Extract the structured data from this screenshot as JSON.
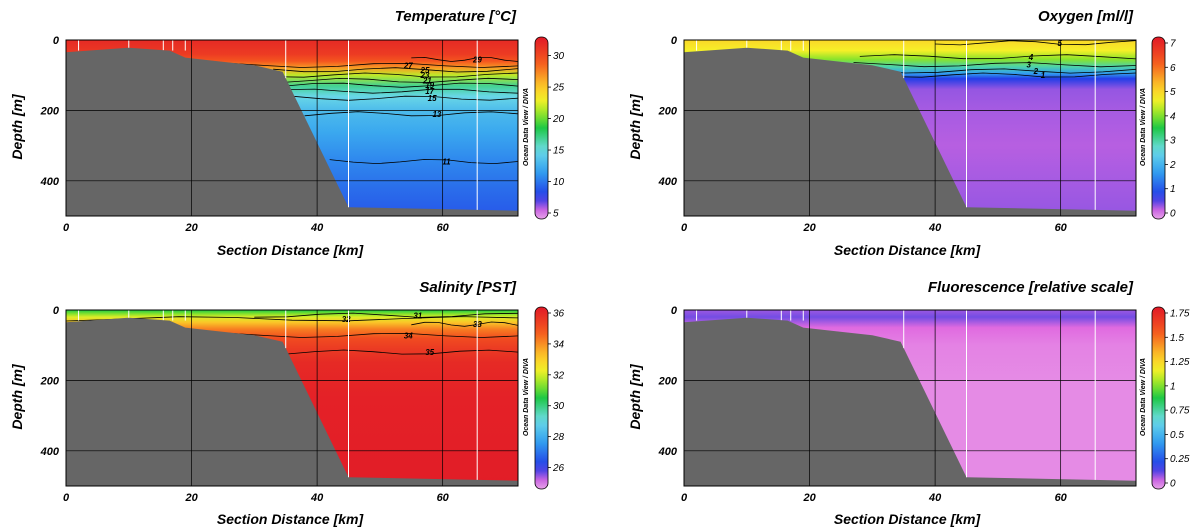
{
  "credit": "Ocean Data View / DIVA",
  "chart_data": [
    {
      "type": "heatmap",
      "title": "Temperature [°C]",
      "xlabel": "Section Distance [km]",
      "ylabel": "Depth [m]",
      "xlim": [
        0,
        72
      ],
      "ylim": [
        0,
        500
      ],
      "y_inverted": true,
      "xticks": [
        0,
        20,
        40,
        60
      ],
      "yticks": [
        0,
        200,
        400
      ],
      "colorbar": {
        "min": 5,
        "max": 32,
        "ticks": [
          5,
          10,
          15,
          20,
          25,
          30
        ],
        "colormap": "odv-rainbow"
      },
      "stations_km": [
        2,
        10,
        15.5,
        17,
        19,
        35,
        45,
        65.5
      ],
      "bathymetry": {
        "x": [
          0,
          10,
          16.5,
          19,
          24,
          30,
          34.5,
          45,
          72
        ],
        "depth": [
          35,
          22,
          30,
          50,
          60,
          72,
          90,
          475,
          485
        ]
      },
      "field": {
        "depths": [
          0,
          40,
          60,
          80,
          100,
          130,
          160,
          200,
          260,
          340,
          420,
          500
        ],
        "values": [
          31,
          30,
          28.5,
          26,
          21.5,
          17,
          15,
          13.5,
          12.5,
          11.2,
          10.2,
          9.4
        ]
      },
      "contours": [
        {
          "label": "29",
          "depth": 55,
          "x_range": [
            55,
            72
          ]
        },
        {
          "label": "27",
          "depth": 72,
          "x_range": [
            26,
            72
          ]
        },
        {
          "label": "25",
          "depth": 85,
          "x_range": [
            33,
            72
          ]
        },
        {
          "label": "23",
          "depth": 100,
          "x_range": [
            33,
            72
          ]
        },
        {
          "label": "21",
          "depth": 115,
          "x_range": [
            34,
            72
          ]
        },
        {
          "label": "19",
          "depth": 128,
          "x_range": [
            35,
            72
          ]
        },
        {
          "label": "17",
          "depth": 145,
          "x_range": [
            35,
            72
          ]
        },
        {
          "label": "15",
          "depth": 165,
          "x_range": [
            36,
            72
          ]
        },
        {
          "label": "13",
          "depth": 210,
          "x_range": [
            38,
            72
          ]
        },
        {
          "label": "11",
          "depth": 345,
          "x_range": [
            42,
            72
          ]
        }
      ]
    },
    {
      "type": "heatmap",
      "title": "Oxygen [ml/l]",
      "xlabel": "Section Distance [km]",
      "ylabel": "Depth [m]",
      "xlim": [
        0,
        72
      ],
      "ylim": [
        0,
        500
      ],
      "y_inverted": true,
      "xticks": [
        0,
        20,
        40,
        60
      ],
      "yticks": [
        0,
        200,
        400
      ],
      "colorbar": {
        "min": 0,
        "max": 7,
        "ticks": [
          0,
          1,
          2,
          3,
          4,
          5,
          6,
          7
        ],
        "colormap": "odv-rainbow"
      },
      "stations_km": [
        2,
        10,
        15.5,
        17,
        19,
        35,
        45,
        65.5
      ],
      "bathymetry": {
        "x": [
          0,
          10,
          16.5,
          19,
          24,
          30,
          34.5,
          45,
          72
        ],
        "depth": [
          35,
          22,
          30,
          50,
          60,
          72,
          90,
          475,
          485
        ]
      },
      "field": {
        "depths": [
          0,
          30,
          55,
          75,
          95,
          110,
          140,
          200,
          300,
          400,
          500
        ],
        "values": [
          4.9,
          4.6,
          4.0,
          3.0,
          1.8,
          0.9,
          0.5,
          0.45,
          0.4,
          0.45,
          0.5
        ]
      },
      "contours": [
        {
          "label": "5",
          "depth": 8,
          "x_range": [
            40,
            72
          ]
        },
        {
          "label": "4",
          "depth": 48,
          "x_range": [
            28,
            72
          ]
        },
        {
          "label": "3",
          "depth": 70,
          "x_range": [
            27,
            72
          ]
        },
        {
          "label": "2",
          "depth": 88,
          "x_range": [
            30,
            72
          ]
        },
        {
          "label": "1",
          "depth": 100,
          "x_range": [
            33,
            72
          ]
        }
      ]
    },
    {
      "type": "heatmap",
      "title": "Salinity [PST]",
      "xlabel": "Section Distance [km]",
      "ylabel": "Depth [m]",
      "xlim": [
        0,
        72
      ],
      "ylim": [
        0,
        500
      ],
      "y_inverted": true,
      "xticks": [
        0,
        20,
        40,
        60
      ],
      "yticks": [
        0,
        200,
        400
      ],
      "colorbar": {
        "min": 25,
        "max": 36,
        "ticks": [
          26,
          28,
          30,
          32,
          34,
          36
        ],
        "colormap": "odv-rainbow"
      },
      "stations_km": [
        2,
        10,
        15.5,
        17,
        19,
        35,
        45,
        65.5
      ],
      "bathymetry": {
        "x": [
          0,
          10,
          16.5,
          19,
          24,
          30,
          34.5,
          45,
          72
        ],
        "depth": [
          35,
          22,
          30,
          50,
          60,
          72,
          90,
          475,
          485
        ]
      },
      "field": {
        "depths": [
          0,
          10,
          20,
          35,
          55,
          80,
          110,
          150,
          250,
          500
        ],
        "values": [
          30.5,
          31.2,
          32.0,
          33.0,
          34.0,
          34.8,
          35.2,
          35.6,
          35.8,
          35.9
        ]
      },
      "contours": [
        {
          "label": "32",
          "depth": 25,
          "x_range": [
            0,
            72
          ]
        },
        {
          "label": "31",
          "depth": 15,
          "x_range": [
            30,
            72
          ]
        },
        {
          "label": "33",
          "depth": 40,
          "x_range": [
            55,
            72
          ]
        },
        {
          "label": "34",
          "depth": 72,
          "x_range": [
            26,
            72
          ]
        },
        {
          "label": "35",
          "depth": 120,
          "x_range": [
            35,
            72
          ]
        }
      ]
    },
    {
      "type": "heatmap",
      "title": "Fluorescence [relative scale]",
      "xlabel": "Section Distance [km]",
      "ylabel": "Depth [m]",
      "xlim": [
        0,
        72
      ],
      "ylim": [
        0,
        500
      ],
      "y_inverted": true,
      "xticks": [
        0,
        20,
        40,
        60
      ],
      "yticks": [
        0,
        200,
        400
      ],
      "colorbar": {
        "min": 0,
        "max": 1.75,
        "ticks": [
          "0",
          "0.25",
          "0.5",
          "0.75",
          "1",
          "1.25",
          "1.5",
          "1.75"
        ],
        "colormap": "odv-rainbow"
      },
      "stations_km": [
        2,
        10,
        15.5,
        17,
        19,
        35,
        45,
        65.5
      ],
      "bathymetry": {
        "x": [
          0,
          10,
          16.5,
          19,
          24,
          30,
          34.5,
          45,
          72
        ],
        "depth": [
          35,
          22,
          30,
          50,
          60,
          72,
          90,
          475,
          485
        ]
      },
      "field": {
        "depths": [
          0,
          20,
          50,
          100,
          200,
          500
        ],
        "values": [
          0.12,
          0.15,
          0.07,
          0.04,
          0.03,
          0.03
        ]
      },
      "contours": []
    }
  ]
}
